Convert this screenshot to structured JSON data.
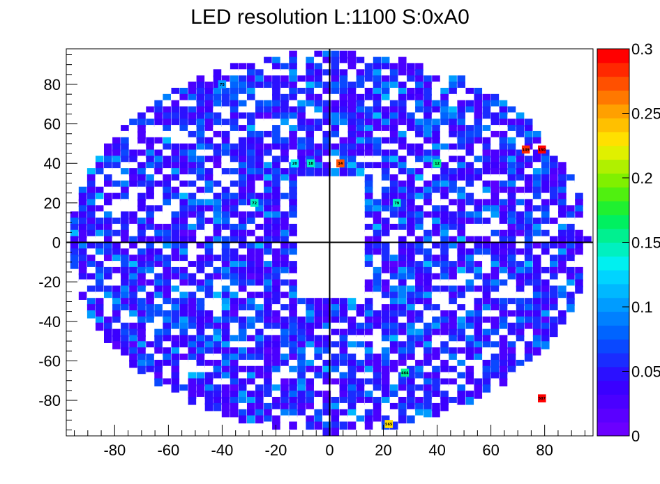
{
  "title": "LED resolution L:1100 S:0xA0",
  "chart_data": {
    "type": "heatmap",
    "title": "LED resolution L:1100 S:0xA0",
    "xlabel": "",
    "ylabel": "",
    "xlim": [
      -98,
      98
    ],
    "ylim": [
      -98,
      98
    ],
    "x_ticks": [
      -80,
      -60,
      -40,
      -20,
      0,
      20,
      40,
      60,
      80
    ],
    "y_ticks": [
      -80,
      -60,
      -40,
      -20,
      0,
      20,
      40,
      60,
      80
    ],
    "colorbar": {
      "range": [
        0,
        0.3
      ],
      "ticks": [
        0,
        0.05,
        0.1,
        0.15,
        0.2,
        0.25,
        0.3
      ],
      "tick_labels": [
        "0",
        "0.05",
        "0.1",
        "0.15",
        "0.2",
        "0.25",
        "0.3"
      ],
      "palette": [
        "#6b00ff",
        "#5a00ff",
        "#4a00ff",
        "#3a00ff",
        "#2b10ff",
        "#1a2cff",
        "#0a48ff",
        "#0064ff",
        "#0080ff",
        "#009cff",
        "#00b8ff",
        "#00d4ff",
        "#00f0f0",
        "#00f0c0",
        "#00f090",
        "#00f060",
        "#20f030",
        "#50f010",
        "#80f000",
        "#b0f000",
        "#e0f000",
        "#ffe000",
        "#ffc000",
        "#ffa000",
        "#ff7800",
        "#ff5000",
        "#ff2800",
        "#ff0000"
      ]
    },
    "grid_lines": "axes x=0 and y=0",
    "highlight_values": [
      {
        "label": "18",
        "x": -7,
        "y": 40,
        "value": 0.14
      },
      {
        "label": "20",
        "x": -13,
        "y": 40,
        "value": 0.13
      },
      {
        "label": "14",
        "x": 4,
        "y": 40,
        "value": 0.27
      },
      {
        "label": "12",
        "x": 40,
        "y": 40,
        "value": 0.15
      },
      {
        "label": "149",
        "x": 73,
        "y": 47,
        "value": 0.28
      },
      {
        "label": "150",
        "x": 79,
        "y": 47,
        "value": 0.29
      },
      {
        "label": "72",
        "x": -28,
        "y": 20,
        "value": 0.14
      },
      {
        "label": "79",
        "x": 25,
        "y": 20,
        "value": 0.14
      },
      {
        "label": "464",
        "x": 28,
        "y": -66,
        "value": 0.15
      },
      {
        "label": "507",
        "x": 79,
        "y": -79,
        "value": 0.29
      },
      {
        "label": "565",
        "x": 22,
        "y": -92,
        "value": 0.23
      },
      {
        "label": "75",
        "x": -40,
        "y": 80,
        "value": 0.1
      }
    ]
  }
}
